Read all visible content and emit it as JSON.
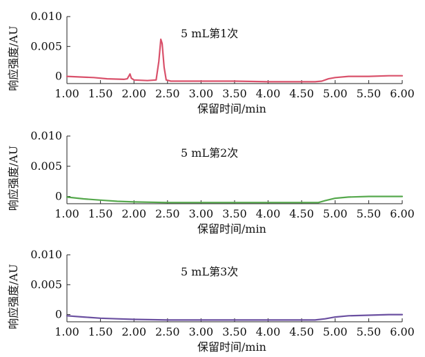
{
  "chart_data": [
    {
      "type": "line",
      "annotation": "5 mL第1次",
      "xlabel": "保留时间/min",
      "ylabel": "响应强度/AU",
      "xlim": [
        1.0,
        6.0
      ],
      "ylim": [
        -0.0012,
        0.01
      ],
      "x_ticks": [
        "1.00",
        "1.50",
        "2.00",
        "2.50",
        "3.00",
        "3.50",
        "4.00",
        "4.50",
        "5.00",
        "5.50",
        "6.00"
      ],
      "y_ticks": [
        "0.010",
        "0.005",
        "0"
      ],
      "color": "#d9506a",
      "series": [
        {
          "x": [
            1.0,
            1.2,
            1.4,
            1.6,
            1.85,
            1.9,
            1.94,
            1.96,
            2.0,
            2.2,
            2.33,
            2.37,
            2.4,
            2.42,
            2.45,
            2.48,
            2.55,
            3.0,
            3.5,
            4.0,
            4.5,
            4.7,
            4.8,
            4.9,
            5.0,
            5.2,
            5.5,
            5.8,
            6.0
          ],
          "y": [
            0.0,
            -0.0001,
            -0.0002,
            -0.0004,
            -0.0005,
            -0.0004,
            0.0004,
            -0.0003,
            -0.0006,
            -0.0007,
            -0.0006,
            0.0025,
            0.0062,
            0.0055,
            0.0015,
            -0.0006,
            -0.0008,
            -0.0008,
            -0.0008,
            -0.0009,
            -0.0009,
            -0.0009,
            -0.0008,
            -0.0004,
            -0.0002,
            0.0,
            0.0,
            0.0001,
            0.0001
          ]
        }
      ]
    },
    {
      "type": "line",
      "annotation": "5 mL第2次",
      "xlabel": "保留时间/min",
      "ylabel": "响应强度/AU",
      "xlim": [
        1.0,
        6.0
      ],
      "ylim": [
        -0.0012,
        0.01
      ],
      "x_ticks": [
        "1.00",
        "1.50",
        "2.00",
        "2.50",
        "3.00",
        "3.50",
        "4.00",
        "4.50",
        "5.00",
        "5.50",
        "6.00"
      ],
      "y_ticks": [
        "0.010",
        "0.005",
        "0"
      ],
      "color": "#55a84c",
      "series": [
        {
          "x": [
            1.0,
            1.25,
            1.5,
            1.75,
            2.0,
            2.5,
            3.0,
            3.5,
            4.0,
            4.5,
            4.75,
            4.85,
            5.0,
            5.2,
            5.5,
            5.8,
            6.0
          ],
          "y": [
            -0.0001,
            -0.0004,
            -0.0006,
            -0.0008,
            -0.0009,
            -0.001,
            -0.001,
            -0.001,
            -0.001,
            -0.001,
            -0.001,
            -0.0007,
            -0.0003,
            -0.0001,
            0.0,
            0.0,
            0.0
          ]
        }
      ]
    },
    {
      "type": "line",
      "annotation": "5 mL第3次",
      "xlabel": "保留时间/min",
      "ylabel": "响应强度/AU",
      "xlim": [
        1.0,
        6.0
      ],
      "ylim": [
        -0.0012,
        0.01
      ],
      "x_ticks": [
        "1.00",
        "1.50",
        "2.00",
        "2.50",
        "3.00",
        "3.50",
        "4.00",
        "4.50",
        "5.00",
        "5.50",
        "6.00"
      ],
      "y_ticks": [
        "0.010",
        "0.005",
        "0"
      ],
      "color": "#6a4fa0",
      "series": [
        {
          "x": [
            1.0,
            1.25,
            1.5,
            1.75,
            2.0,
            2.5,
            3.0,
            3.5,
            4.0,
            4.5,
            4.7,
            4.85,
            5.0,
            5.2,
            5.5,
            5.8,
            6.0
          ],
          "y": [
            -0.0002,
            -0.0004,
            -0.0006,
            -0.0007,
            -0.0008,
            -0.0009,
            -0.0009,
            -0.0009,
            -0.0009,
            -0.0009,
            -0.0009,
            -0.0007,
            -0.0004,
            -0.0002,
            -0.0001,
            0.0,
            0.0
          ]
        }
      ]
    }
  ]
}
